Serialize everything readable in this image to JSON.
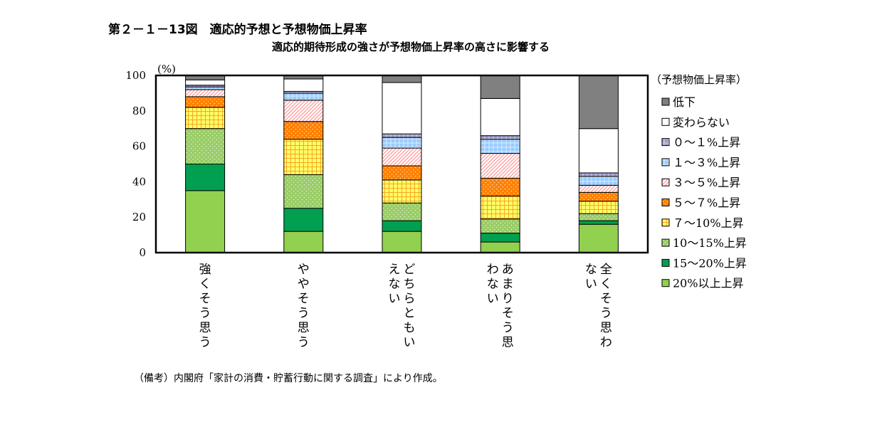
{
  "title": "第２－１－13図　適応的予想と予想物価上昇率",
  "subtitle": "適応的期待形成の強さが予想物価上昇率の高さに影響する",
  "note": "（備考）内閣府「家計の消費・貯蓄行動に関する調査」により作成。",
  "colors": {
    "decline": "#808080",
    "nochange": "#ffffff",
    "r0_1": "#9999cc",
    "r1_3": "#99ccff",
    "r3_5": "#ff9999",
    "r5_7": "#ff8000",
    "r7_10": "#ffff66",
    "r10_15": "#99cc66",
    "r15_20": "#00a050",
    "r20": "#92d050"
  },
  "chart_data": {
    "type": "bar",
    "stacked": true,
    "ylabel": "(%)",
    "ylim": [
      0,
      100
    ],
    "yticks": [
      0,
      20,
      40,
      60,
      80,
      100
    ],
    "legend_title": "（予想物価上昇率）",
    "legend_position": "right",
    "categories": [
      "強くそう思う",
      "ややそう思う",
      "どちらともいえない",
      "あまりそう思わない",
      "全くそう思わない"
    ],
    "category_lines": [
      [
        "強くそう思う"
      ],
      [
        "ややそう思う"
      ],
      [
        "どちらともい",
        "えない"
      ],
      [
        "あまりそう思",
        "わない"
      ],
      [
        "全くそう思わ",
        "ない"
      ]
    ],
    "series": [
      {
        "name": "20%以上上昇",
        "values": [
          35,
          12,
          12,
          6,
          16
        ],
        "key": "r20",
        "pattern": "solid"
      },
      {
        "name": "15～20%上昇",
        "values": [
          15,
          13,
          6,
          5,
          2
        ],
        "key": "r15_20",
        "pattern": "solid"
      },
      {
        "name": "10～15%上昇",
        "values": [
          20,
          19,
          10,
          8,
          4
        ],
        "key": "r10_15",
        "pattern": "dots"
      },
      {
        "name": "７～10%上昇",
        "values": [
          12,
          20,
          13,
          13,
          7
        ],
        "key": "r7_10",
        "pattern": "grid"
      },
      {
        "name": "５～７%上昇",
        "values": [
          6,
          10,
          8,
          10,
          5
        ],
        "key": "r5_7",
        "pattern": "dots"
      },
      {
        "name": "３～５%上昇",
        "values": [
          4,
          12,
          10,
          14,
          4
        ],
        "key": "r3_5",
        "pattern": "diag"
      },
      {
        "name": "１～３%上昇",
        "values": [
          1.5,
          4,
          6,
          8,
          5
        ],
        "key": "r1_3",
        "pattern": "cross"
      },
      {
        "name": "０～１%上昇",
        "values": [
          1,
          1,
          2,
          2,
          2
        ],
        "key": "r0_1",
        "pattern": "cross"
      },
      {
        "name": "変わらない",
        "values": [
          3,
          7,
          29,
          21,
          25
        ],
        "key": "nochange",
        "pattern": "solid"
      },
      {
        "name": "低下",
        "values": [
          2.5,
          2,
          4,
          13,
          30
        ],
        "key": "decline",
        "pattern": "solid"
      }
    ]
  }
}
